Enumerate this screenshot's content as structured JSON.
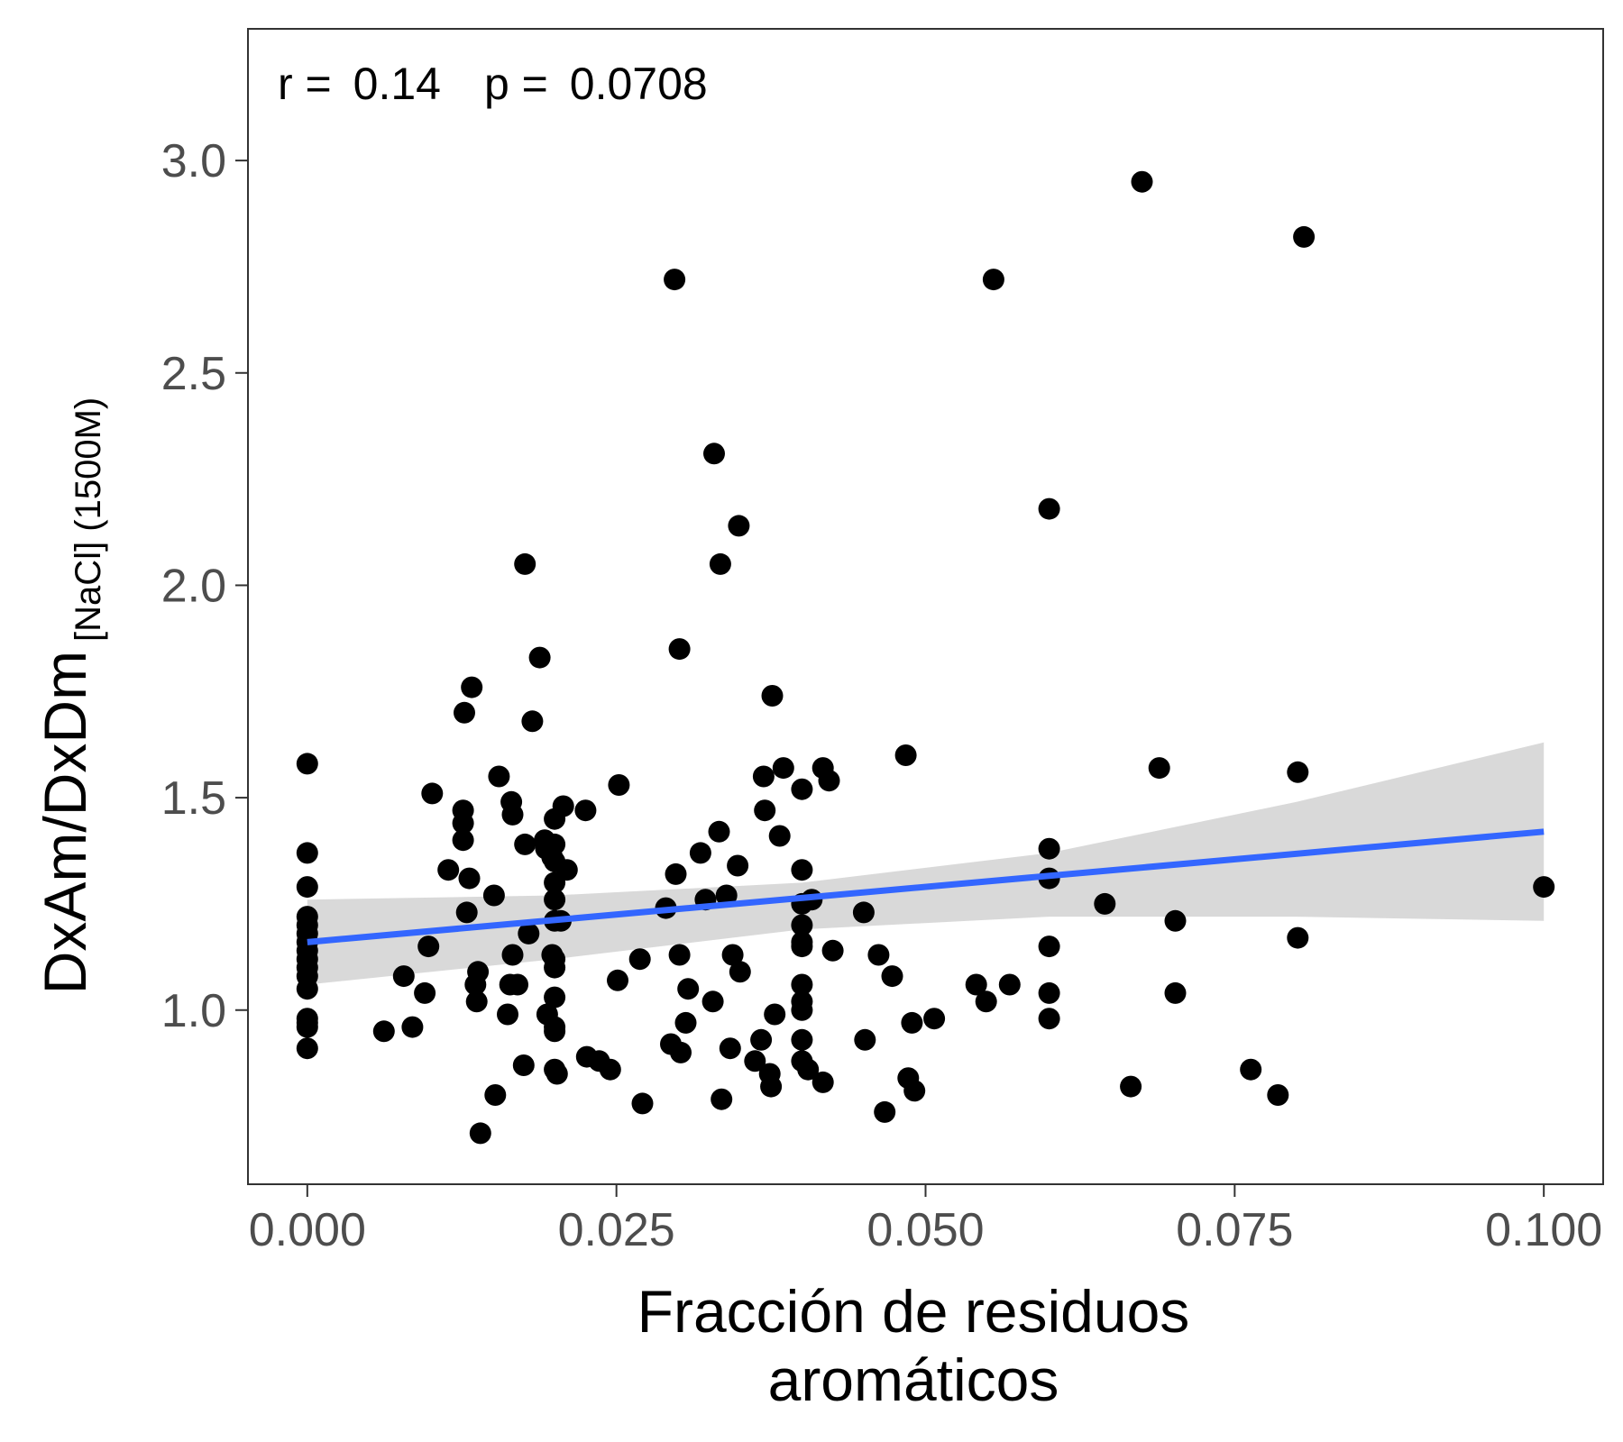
{
  "chart_data": {
    "type": "scatter",
    "title": "",
    "xlabel_lines": [
      "Fracción de residuos",
      "aromáticos"
    ],
    "ylabel_main": "DxAm/DxDm",
    "ylabel_subscript": "[NaCl] (1500M)",
    "annotation": {
      "r_label": "r = ",
      "r_value": "0.14",
      "p_label": "p = ",
      "p_value": "0.0708"
    },
    "xlim": [
      -0.0048,
      0.1048
    ],
    "ylim": [
      0.59,
      3.31
    ],
    "x_ticks": [
      0.0,
      0.025,
      0.05,
      0.075,
      0.1
    ],
    "x_tick_labels": [
      "0.000",
      "0.025",
      "0.050",
      "0.075",
      "0.100"
    ],
    "y_ticks": [
      1.0,
      1.5,
      2.0,
      2.5,
      3.0
    ],
    "y_tick_labels": [
      "1.0",
      "1.5",
      "2.0",
      "2.5",
      "3.0"
    ],
    "grid": false,
    "colors": {
      "points": "#000000",
      "fit_line": "#3366FF",
      "ci_band": "#bfbfbf"
    },
    "fit": {
      "x": [
        0.0,
        0.1
      ],
      "y": [
        1.16,
        1.42
      ]
    },
    "ci_band": {
      "x": [
        0.0,
        0.02,
        0.04,
        0.06,
        0.08,
        0.1
      ],
      "upper": [
        1.26,
        1.27,
        1.3,
        1.37,
        1.49,
        1.63
      ],
      "lower": [
        1.06,
        1.12,
        1.19,
        1.22,
        1.22,
        1.21
      ]
    },
    "points": [
      [
        0.0,
        1.58
      ],
      [
        0.0,
        1.37
      ],
      [
        0.0,
        1.29
      ],
      [
        0.0,
        1.22
      ],
      [
        0.0,
        1.2
      ],
      [
        0.0,
        1.18
      ],
      [
        0.0,
        1.16
      ],
      [
        0.0,
        1.14
      ],
      [
        0.0,
        1.12
      ],
      [
        0.0,
        1.1
      ],
      [
        0.0,
        1.08
      ],
      [
        0.0,
        1.05
      ],
      [
        0.0,
        0.98
      ],
      [
        0.0,
        0.97
      ],
      [
        0.0,
        0.96
      ],
      [
        0.0,
        0.91
      ],
      [
        0.0062,
        0.95
      ],
      [
        0.0078,
        1.08
      ],
      [
        0.0085,
        0.96
      ],
      [
        0.0095,
        1.04
      ],
      [
        0.0098,
        1.15
      ],
      [
        0.0101,
        1.51
      ],
      [
        0.0114,
        1.33
      ],
      [
        0.0126,
        1.47
      ],
      [
        0.0126,
        1.44
      ],
      [
        0.0126,
        1.4
      ],
      [
        0.0127,
        1.7
      ],
      [
        0.0129,
        1.23
      ],
      [
        0.0131,
        1.31
      ],
      [
        0.0133,
        1.76
      ],
      [
        0.0136,
        1.06
      ],
      [
        0.0137,
        1.02
      ],
      [
        0.0138,
        1.09
      ],
      [
        0.014,
        0.71
      ],
      [
        0.0151,
        1.27
      ],
      [
        0.0152,
        0.8
      ],
      [
        0.0155,
        1.55
      ],
      [
        0.0162,
        0.99
      ],
      [
        0.0164,
        1.06
      ],
      [
        0.0165,
        1.49
      ],
      [
        0.0166,
        1.46
      ],
      [
        0.0166,
        1.13
      ],
      [
        0.017,
        1.06
      ],
      [
        0.0175,
        0.87
      ],
      [
        0.0176,
        1.39
      ],
      [
        0.0176,
        2.05
      ],
      [
        0.0179,
        1.18
      ],
      [
        0.0182,
        1.68
      ],
      [
        0.0188,
        1.83
      ],
      [
        0.0192,
        1.4
      ],
      [
        0.0193,
        1.38
      ],
      [
        0.0194,
        0.99
      ],
      [
        0.0198,
        1.36
      ],
      [
        0.0198,
        1.13
      ],
      [
        0.02,
        1.45
      ],
      [
        0.02,
        1.39
      ],
      [
        0.02,
        1.35
      ],
      [
        0.02,
        1.3
      ],
      [
        0.02,
        1.26
      ],
      [
        0.02,
        1.21
      ],
      [
        0.02,
        1.12
      ],
      [
        0.02,
        1.1
      ],
      [
        0.02,
        1.03
      ],
      [
        0.02,
        0.96
      ],
      [
        0.02,
        0.95
      ],
      [
        0.02,
        0.86
      ],
      [
        0.0202,
        0.85
      ],
      [
        0.0205,
        1.21
      ],
      [
        0.0207,
        1.48
      ],
      [
        0.021,
        1.33
      ],
      [
        0.0225,
        1.47
      ],
      [
        0.0226,
        0.89
      ],
      [
        0.0236,
        0.88
      ],
      [
        0.0245,
        0.86
      ],
      [
        0.0251,
        1.07
      ],
      [
        0.0252,
        1.53
      ],
      [
        0.0271,
        0.78
      ],
      [
        0.0269,
        1.12
      ],
      [
        0.029,
        1.24
      ],
      [
        0.0294,
        0.92
      ],
      [
        0.0297,
        2.72
      ],
      [
        0.0298,
        1.32
      ],
      [
        0.0301,
        1.85
      ],
      [
        0.0301,
        1.13
      ],
      [
        0.0302,
        0.9
      ],
      [
        0.0306,
        0.97
      ],
      [
        0.0308,
        1.05
      ],
      [
        0.0318,
        1.37
      ],
      [
        0.0322,
        1.26
      ],
      [
        0.0328,
        1.02
      ],
      [
        0.0329,
        2.31
      ],
      [
        0.0333,
        1.42
      ],
      [
        0.0334,
        2.05
      ],
      [
        0.0335,
        0.79
      ],
      [
        0.0339,
        1.27
      ],
      [
        0.0342,
        0.91
      ],
      [
        0.0344,
        1.13
      ],
      [
        0.0349,
        2.14
      ],
      [
        0.0348,
        1.34
      ],
      [
        0.035,
        1.09
      ],
      [
        0.0362,
        0.88
      ],
      [
        0.0367,
        0.93
      ],
      [
        0.0369,
        1.55
      ],
      [
        0.037,
        1.47
      ],
      [
        0.0374,
        0.85
      ],
      [
        0.0375,
        0.82
      ],
      [
        0.0376,
        1.74
      ],
      [
        0.0378,
        0.99
      ],
      [
        0.0382,
        1.41
      ],
      [
        0.0385,
        1.57
      ],
      [
        0.04,
        1.52
      ],
      [
        0.04,
        1.33
      ],
      [
        0.04,
        1.25
      ],
      [
        0.04,
        1.2
      ],
      [
        0.04,
        1.16
      ],
      [
        0.04,
        1.15
      ],
      [
        0.04,
        1.06
      ],
      [
        0.04,
        1.02
      ],
      [
        0.04,
        1.0
      ],
      [
        0.04,
        0.93
      ],
      [
        0.04,
        0.88
      ],
      [
        0.0405,
        0.86
      ],
      [
        0.0408,
        1.26
      ],
      [
        0.0417,
        1.57
      ],
      [
        0.0417,
        0.83
      ],
      [
        0.0422,
        1.54
      ],
      [
        0.0425,
        1.14
      ],
      [
        0.045,
        1.23
      ],
      [
        0.0451,
        0.93
      ],
      [
        0.0462,
        1.13
      ],
      [
        0.0467,
        0.76
      ],
      [
        0.0473,
        1.08
      ],
      [
        0.0484,
        1.6
      ],
      [
        0.0486,
        0.84
      ],
      [
        0.0489,
        0.97
      ],
      [
        0.0491,
        0.81
      ],
      [
        0.0507,
        0.98
      ],
      [
        0.0541,
        1.06
      ],
      [
        0.0549,
        1.02
      ],
      [
        0.0555,
        2.72
      ],
      [
        0.0568,
        1.06
      ],
      [
        0.06,
        2.18
      ],
      [
        0.06,
        1.38
      ],
      [
        0.06,
        1.31
      ],
      [
        0.06,
        1.15
      ],
      [
        0.06,
        1.04
      ],
      [
        0.06,
        0.98
      ],
      [
        0.0645,
        1.25
      ],
      [
        0.0666,
        0.82
      ],
      [
        0.0675,
        2.95
      ],
      [
        0.0689,
        1.57
      ],
      [
        0.0702,
        1.21
      ],
      [
        0.0702,
        1.04
      ],
      [
        0.0763,
        0.86
      ],
      [
        0.0785,
        0.8
      ],
      [
        0.0801,
        1.17
      ],
      [
        0.0801,
        1.56
      ],
      [
        0.0806,
        2.82
      ],
      [
        0.1,
        1.29
      ]
    ]
  }
}
